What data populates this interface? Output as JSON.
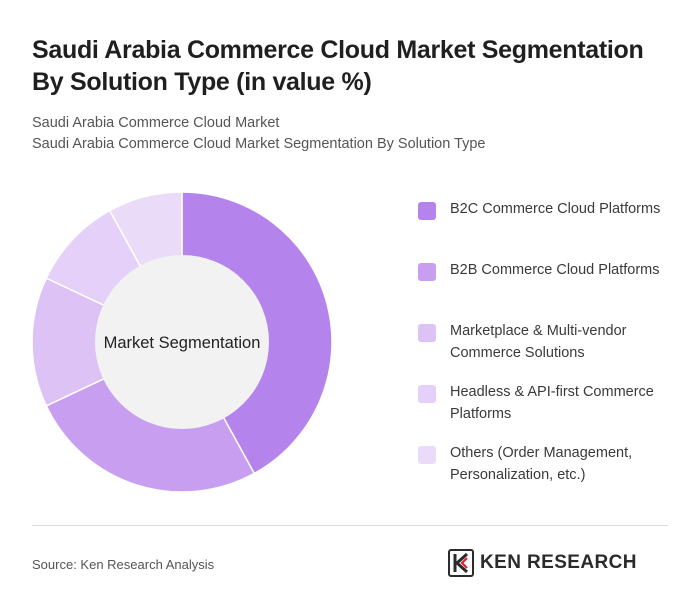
{
  "header": {
    "title": "Saudi Arabia Commerce Cloud Market Segmentation By Solution Type (in value %)",
    "subtitle_1": "Saudi Arabia Commerce Cloud Market",
    "subtitle_2": "Saudi Arabia Commerce Cloud Market Segmentation By Solution Type"
  },
  "chart_data": {
    "type": "pie",
    "variant": "donut",
    "center_label": "Market Segmentation",
    "categories": [
      "B2C Commerce Cloud Platforms",
      "B2B Commerce Cloud Platforms",
      "Marketplace & Multi-vendor Commerce Solutions",
      "Headless & API-first Commerce Platforms",
      "Others (Order Management, Personalization, etc.)"
    ],
    "values": [
      42,
      26,
      14,
      10,
      8
    ],
    "colors": [
      "#b583ec",
      "#c89ff0",
      "#ddc2f6",
      "#e4d0f8",
      "#eadcf9"
    ],
    "legend_position": "right"
  },
  "footer": {
    "source": "Source: Ken Research Analysis",
    "brand_name": "KEN RESEARCH",
    "brand_icon": "ken-research-logo-icon"
  }
}
